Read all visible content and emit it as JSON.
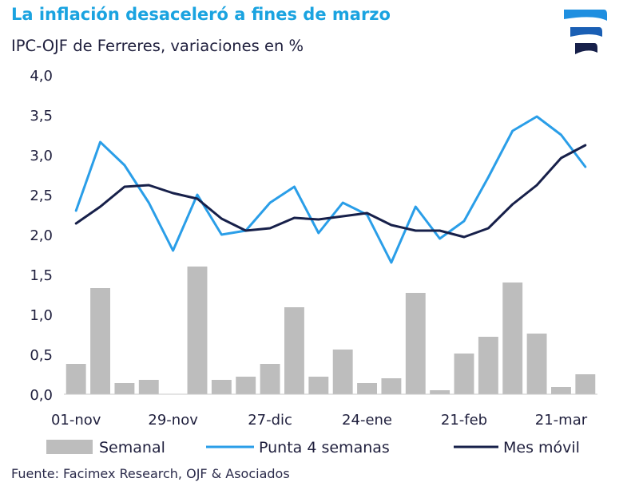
{
  "colors": {
    "title": "#1aa3e0",
    "bar": "#bdbdbd",
    "punta": "#2a9ee8",
    "mes_movil": "#17204a",
    "text": "#1f1f3d"
  },
  "chart_data": {
    "type": "bar+line",
    "title": "La inflación desaceleró a fines de marzo",
    "subtitle": "IPC-OJF de Ferreres, variaciones en %",
    "source": "Fuente: Facimex Research, OJF & Asociados",
    "ylim": [
      0,
      4
    ],
    "yticks": [
      "0,0",
      "0,5",
      "1,0",
      "1,5",
      "2,0",
      "2,5",
      "3,0",
      "3,5",
      "4,0"
    ],
    "ytick_values": [
      0,
      0.5,
      1,
      1.5,
      2,
      2.5,
      3,
      3.5,
      4
    ],
    "n_points": 22,
    "xticks": [
      {
        "label": "01-nov",
        "index": 0
      },
      {
        "label": "29-nov",
        "index": 4
      },
      {
        "label": "27-dic",
        "index": 8
      },
      {
        "label": "24-ene",
        "index": 12
      },
      {
        "label": "21-feb",
        "index": 16
      },
      {
        "label": "21-mar",
        "index": 20
      }
    ],
    "series": [
      {
        "name": "Semanal",
        "kind": "bar",
        "values": [
          0.38,
          1.33,
          0.14,
          0.18,
          0.0,
          1.6,
          0.18,
          0.22,
          0.38,
          1.09,
          0.22,
          0.56,
          0.14,
          0.2,
          1.27,
          0.05,
          0.51,
          0.72,
          1.4,
          0.76,
          0.09,
          0.25
        ]
      },
      {
        "name": "Punta 4 semanas",
        "kind": "line",
        "values": [
          2.3,
          3.16,
          2.87,
          2.4,
          1.8,
          2.5,
          2.0,
          2.05,
          2.4,
          2.6,
          2.02,
          2.4,
          2.25,
          1.65,
          2.35,
          1.95,
          2.17,
          2.72,
          3.3,
          3.48,
          3.25,
          2.85
        ]
      },
      {
        "name": "Mes móvil",
        "kind": "line",
        "values": [
          2.14,
          2.35,
          2.6,
          2.62,
          2.52,
          2.45,
          2.2,
          2.05,
          2.08,
          2.21,
          2.19,
          2.23,
          2.27,
          2.12,
          2.05,
          2.05,
          1.97,
          2.08,
          2.38,
          2.62,
          2.96,
          3.12
        ]
      }
    ]
  }
}
